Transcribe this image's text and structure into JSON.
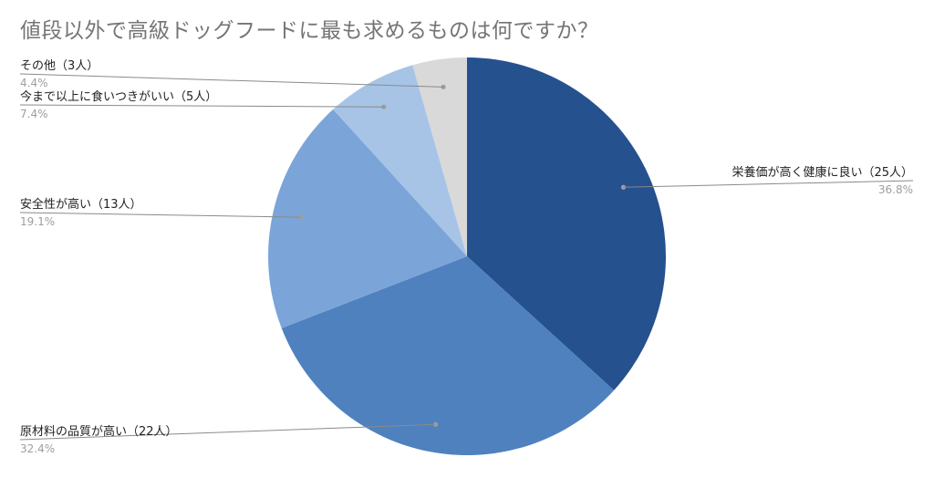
{
  "chart_data": {
    "type": "pie",
    "title": "値段以外で高級ドッグフードに最も求めるものは何ですか？",
    "slices": [
      {
        "label": "栄養価が高く健康に良い（25人）",
        "value": 25,
        "percent": "36.8%",
        "color": "#25518f"
      },
      {
        "label": "原材料の品質が高い（22人）",
        "value": 22,
        "percent": "32.4%",
        "color": "#4f81bf"
      },
      {
        "label": "安全性が高い（13人）",
        "value": 13,
        "percent": "19.1%",
        "color": "#7ba5d8"
      },
      {
        "label": "今まで以上に食いつきがいい（5人）",
        "value": 5,
        "percent": "7.4%",
        "color": "#a7c4e6"
      },
      {
        "label": "その他（3人）",
        "value": 3,
        "percent": "4.4%",
        "color": "#d9d9d9"
      }
    ]
  }
}
